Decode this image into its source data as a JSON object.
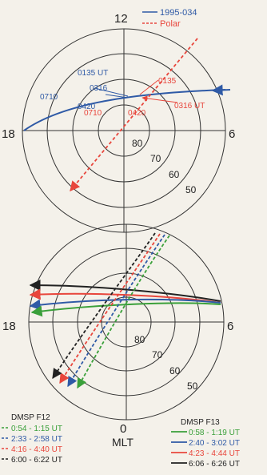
{
  "top_panel": {
    "mlt_labels": {
      "noon": "12",
      "dusk": "18",
      "dawn": "6"
    },
    "lat_labels": [
      "80",
      "70",
      "60",
      "50"
    ],
    "legend": [
      {
        "label": "1995-034",
        "color": "#2f5aa6",
        "style": "solid"
      },
      {
        "label": "Polar",
        "color": "#e8463c",
        "style": "dashed"
      }
    ],
    "satellite_times": [
      "0135 UT",
      "0316",
      "0420",
      "0710"
    ],
    "polar_times": [
      "0135",
      "0316 UT",
      "0420",
      "0710"
    ]
  },
  "bottom_panel": {
    "mlt_labels": {
      "dusk": "18",
      "dawn": "6",
      "midnight": "0",
      "axis": "MLT"
    },
    "lat_labels": [
      "80",
      "70",
      "60",
      "50"
    ],
    "legend_left": {
      "title": "DMSP F12",
      "items": [
        {
          "label": "0:54 - 1:15 UT",
          "color": "#3aa03a",
          "style": "dashed"
        },
        {
          "label": "2:33 - 2:58 UT",
          "color": "#2f5aa6",
          "style": "dashed"
        },
        {
          "label": "4:16 - 4:40 UT",
          "color": "#e8463c",
          "style": "dashed"
        },
        {
          "label": "6:00 - 6:22 UT",
          "color": "#222222",
          "style": "dashed"
        }
      ]
    },
    "legend_right": {
      "title": "DMSP F13",
      "items": [
        {
          "label": "0:58 - 1:19 UT",
          "color": "#3aa03a",
          "style": "solid"
        },
        {
          "label": "2:40 - 3:02 UT",
          "color": "#2f5aa6",
          "style": "solid"
        },
        {
          "label": "4:23 - 4:44 UT",
          "color": "#e8463c",
          "style": "solid"
        },
        {
          "label": "6:06 - 6:26 UT",
          "color": "#222222",
          "style": "solid"
        }
      ]
    }
  }
}
